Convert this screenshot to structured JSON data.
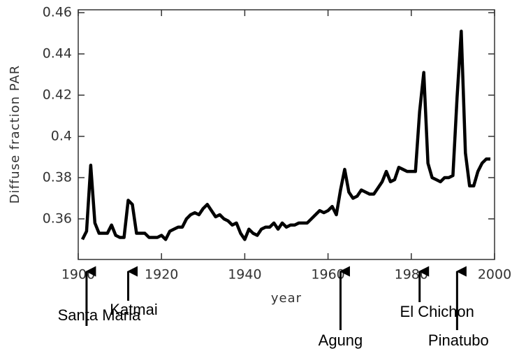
{
  "chart_data": {
    "type": "line",
    "xlabel": "year",
    "ylabel": "Diffuse fraction PAR",
    "x": [
      1901,
      1902,
      1903,
      1904,
      1905,
      1906,
      1907,
      1908,
      1909,
      1910,
      1911,
      1912,
      1913,
      1914,
      1915,
      1916,
      1917,
      1918,
      1919,
      1920,
      1921,
      1922,
      1923,
      1924,
      1925,
      1926,
      1927,
      1928,
      1929,
      1930,
      1931,
      1932,
      1933,
      1934,
      1935,
      1936,
      1937,
      1938,
      1939,
      1940,
      1941,
      1942,
      1943,
      1944,
      1945,
      1946,
      1947,
      1948,
      1949,
      1950,
      1951,
      1952,
      1953,
      1954,
      1955,
      1956,
      1957,
      1958,
      1959,
      1960,
      1961,
      1962,
      1963,
      1964,
      1965,
      1966,
      1967,
      1968,
      1969,
      1970,
      1971,
      1972,
      1973,
      1974,
      1975,
      1976,
      1977,
      1978,
      1979,
      1980,
      1981,
      1982,
      1983,
      1984,
      1985,
      1986,
      1987,
      1988,
      1989,
      1990,
      1991,
      1992,
      1993,
      1994,
      1995,
      1996,
      1997,
      1998,
      1999
    ],
    "series": [
      {
        "color": "#000000",
        "values": [
          0.35,
          0.354,
          0.386,
          0.358,
          0.353,
          0.353,
          0.353,
          0.357,
          0.352,
          0.351,
          0.351,
          0.369,
          0.367,
          0.353,
          0.353,
          0.353,
          0.351,
          0.351,
          0.351,
          0.352,
          0.35,
          0.354,
          0.355,
          0.356,
          0.356,
          0.36,
          0.362,
          0.363,
          0.362,
          0.365,
          0.367,
          0.364,
          0.361,
          0.362,
          0.36,
          0.359,
          0.357,
          0.358,
          0.353,
          0.35,
          0.355,
          0.353,
          0.352,
          0.355,
          0.356,
          0.356,
          0.358,
          0.355,
          0.358,
          0.356,
          0.357,
          0.357,
          0.358,
          0.358,
          0.358,
          0.36,
          0.362,
          0.364,
          0.363,
          0.364,
          0.366,
          0.362,
          0.374,
          0.384,
          0.373,
          0.37,
          0.371,
          0.374,
          0.373,
          0.372,
          0.372,
          0.375,
          0.378,
          0.383,
          0.378,
          0.379,
          0.385,
          0.384,
          0.383,
          0.383,
          0.383,
          0.412,
          0.431,
          0.387,
          0.38,
          0.379,
          0.378,
          0.38,
          0.38,
          0.381,
          0.419,
          0.451,
          0.392,
          0.376,
          0.376,
          0.383,
          0.387,
          0.389,
          0.389
        ]
      }
    ],
    "xlim": [
      1900,
      2000
    ],
    "xticks": [
      1900,
      1920,
      1940,
      1960,
      1980,
      2000
    ],
    "ylim": [
      0.3403,
      0.4614
    ],
    "yticks": [
      0.36,
      0.38,
      0.4,
      0.42,
      0.44,
      0.46
    ],
    "annotations": [
      {
        "text": "Santa Maria",
        "x": 1902
      },
      {
        "text": "Katmai",
        "x": 1912
      },
      {
        "text": "Agung",
        "x": 1963
      },
      {
        "text": "El Chichon",
        "x": 1982
      },
      {
        "text": "Pinatubo",
        "x": 1991
      }
    ]
  }
}
